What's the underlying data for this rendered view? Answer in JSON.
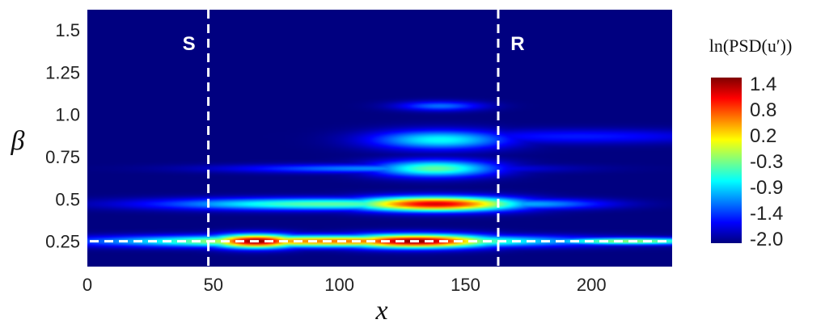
{
  "chart_data": {
    "type": "heatmap",
    "title": "",
    "xlabel": "x",
    "ylabel": "β",
    "xlim": [
      0,
      232
    ],
    "ylim": [
      0.1,
      1.62
    ],
    "x_ticks": [
      {
        "value": 0,
        "label": "0"
      },
      {
        "value": 50,
        "label": "50"
      },
      {
        "value": 100,
        "label": "100"
      },
      {
        "value": 150,
        "label": "150"
      },
      {
        "value": 200,
        "label": "200"
      }
    ],
    "y_ticks": [
      {
        "value": 0.25,
        "label": "0.25"
      },
      {
        "value": 0.5,
        "label": "0.5"
      },
      {
        "value": 0.75,
        "label": "0.75"
      },
      {
        "value": 1.0,
        "label": "1.0"
      },
      {
        "value": 1.25,
        "label": "1.25"
      },
      {
        "value": 1.5,
        "label": "1.5"
      }
    ],
    "colorbar": {
      "title": "ln(PSD(u′))",
      "min": -2.0,
      "max": 1.4,
      "tick_labels": [
        "1.4",
        "0.8",
        "0.2",
        "-0.3",
        "-0.9",
        "-1.4",
        "-2.0"
      ],
      "colormap": "jet"
    },
    "vertical_markers": [
      {
        "x": 48,
        "label": "S"
      },
      {
        "x": 163,
        "label": "R"
      }
    ],
    "horizontal_marker": {
      "y": 0.25
    },
    "background_value": -2.0,
    "features": [
      {
        "x_center": 67,
        "x_width": 13,
        "beta": 0.25,
        "beta_width": 0.028,
        "peak": 1.4
      },
      {
        "x_center": 130,
        "x_width": 22,
        "beta": 0.25,
        "beta_width": 0.028,
        "peak": 1.4
      },
      {
        "x_center": 100,
        "x_width": 60,
        "beta": 0.25,
        "beta_width": 0.024,
        "peak": 0.6
      },
      {
        "x_center": 215,
        "x_width": 25,
        "beta": 0.25,
        "beta_width": 0.015,
        "peak": -0.2
      },
      {
        "x_center": 138,
        "x_width": 23,
        "beta": 0.47,
        "beta_width": 0.03,
        "peak": 1.1
      },
      {
        "x_center": 95,
        "x_width": 45,
        "beta": 0.47,
        "beta_width": 0.025,
        "peak": -0.4
      },
      {
        "x_center": 175,
        "x_width": 22,
        "beta": 0.47,
        "beta_width": 0.022,
        "peak": -1.0
      },
      {
        "x_center": 138,
        "x_width": 17,
        "beta": 0.68,
        "beta_width": 0.035,
        "peak": -0.4
      },
      {
        "x_center": 115,
        "x_width": 40,
        "beta": 0.68,
        "beta_width": 0.018,
        "peak": -1.1
      },
      {
        "x_center": 140,
        "x_width": 19,
        "beta": 0.85,
        "beta_width": 0.04,
        "peak": -0.7
      },
      {
        "x_center": 195,
        "x_width": 40,
        "beta": 0.87,
        "beta_width": 0.03,
        "peak": -1.5
      },
      {
        "x_center": 140,
        "x_width": 12,
        "beta": 1.05,
        "beta_width": 0.02,
        "peak": -1.2
      }
    ]
  }
}
